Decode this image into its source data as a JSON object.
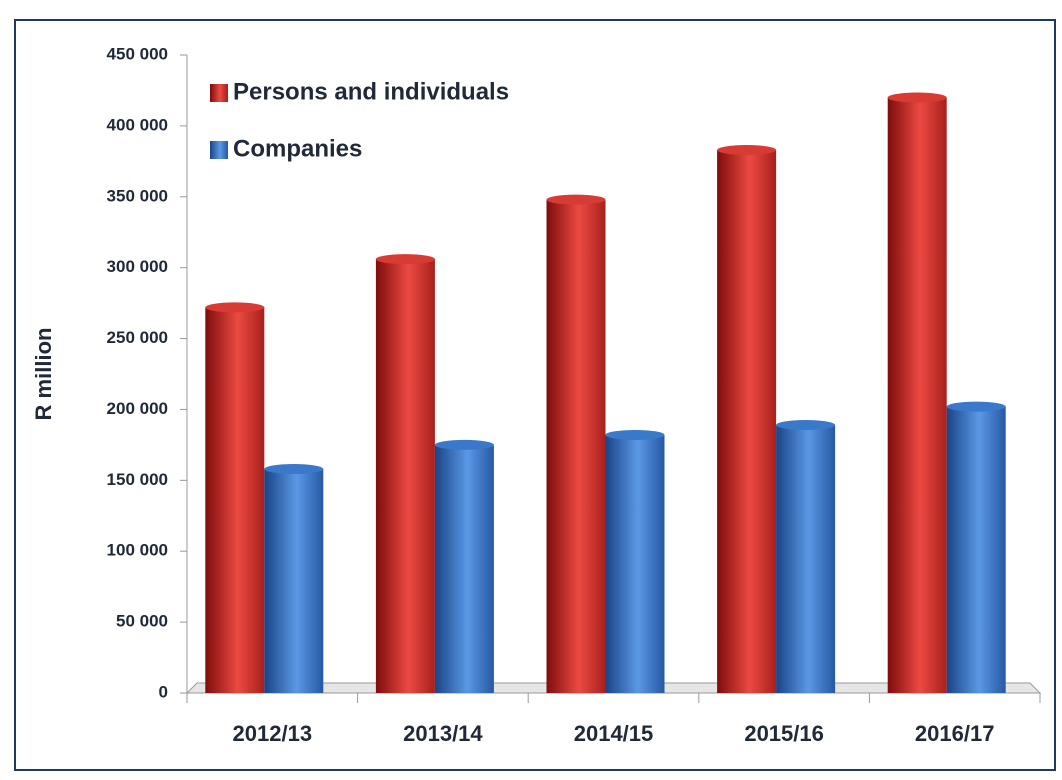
{
  "chart_data": {
    "type": "bar",
    "ylabel": "R million",
    "categories": [
      "2012/13",
      "2013/14",
      "2014/15",
      "2015/16",
      "2016/17"
    ],
    "series": [
      {
        "name": "Persons and individuals",
        "color": "#d83a34",
        "values": [
          272000,
          306000,
          348000,
          383000,
          420000
        ]
      },
      {
        "name": "Companies",
        "color": "#3a78c9",
        "values": [
          158000,
          175000,
          182000,
          189000,
          202000
        ]
      }
    ],
    "ylim": [
      0,
      450000
    ],
    "yticks": [
      0,
      {
        "value": 50000,
        "label": "50 000"
      },
      {
        "value": 100000,
        "label": "100 000"
      },
      {
        "value": 150000,
        "label": "150 000"
      },
      {
        "value": 200000,
        "label": "200 000"
      },
      {
        "value": 250000,
        "label": "250 000"
      },
      {
        "value": 300000,
        "label": "300 000"
      },
      {
        "value": 350000,
        "label": "350 000"
      },
      {
        "value": 400000,
        "label": "400 000"
      },
      {
        "value": 450000,
        "label": "450 000"
      }
    ],
    "legend": "top-left"
  }
}
